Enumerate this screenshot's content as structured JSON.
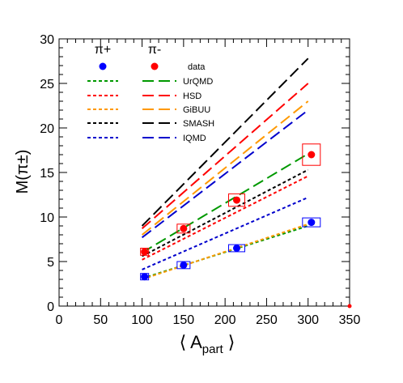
{
  "chart_data": {
    "type": "line",
    "xlabel_main": "⟨ A",
    "xlabel_sub": "part",
    "xlabel_end": " ⟩",
    "ylabel": "M(π±)",
    "xlim": [
      0,
      350
    ],
    "ylim": [
      0,
      30
    ],
    "x_ticks": [
      "0",
      "50",
      "100",
      "150",
      "200",
      "250",
      "300",
      "350"
    ],
    "y_ticks": [
      "0",
      "5",
      "10",
      "15",
      "20",
      "25",
      "30"
    ],
    "legend": {
      "column_headers": [
        "π+",
        "π-"
      ],
      "entries": [
        {
          "label": "data",
          "color": "#0000ff",
          "color2": "#ff0000",
          "style": "marker"
        },
        {
          "label": "UrQMD",
          "color": "#009900",
          "style": "line"
        },
        {
          "label": "HSD",
          "color": "#ff0000",
          "style": "line"
        },
        {
          "label": "GiBUU",
          "color": "#ff9900",
          "style": "line"
        },
        {
          "label": "SMASH",
          "color": "#000000",
          "style": "line"
        },
        {
          "label": "IQMD",
          "color": "#0000cc",
          "style": "line"
        }
      ]
    },
    "series": [
      {
        "name": "data",
        "particle": "π+",
        "color": "#0000ff",
        "kind": "data",
        "x": [
          103,
          150,
          214,
          304
        ],
        "y": [
          3.3,
          4.6,
          6.5,
          9.4
        ],
        "sys_w": [
          5,
          8,
          10,
          11
        ],
        "sys_h": [
          0.3,
          0.4,
          0.4,
          0.5
        ]
      },
      {
        "name": "data",
        "particle": "π-",
        "color": "#ff0000",
        "kind": "data",
        "x": [
          103,
          150,
          214,
          304
        ],
        "y": [
          6.1,
          8.7,
          11.9,
          17.0
        ],
        "sys_w": [
          5,
          8,
          10,
          11
        ],
        "sys_h": [
          0.4,
          0.5,
          0.7,
          1.2
        ]
      },
      {
        "name": "UrQMD",
        "particle": "π+",
        "color": "#009900",
        "kind": "short",
        "x": [
          100,
          300
        ],
        "y": [
          3.1,
          9.0
        ]
      },
      {
        "name": "HSD",
        "particle": "π+",
        "color": "#ff0000",
        "kind": "short",
        "x": [
          100,
          300
        ],
        "y": [
          5.2,
          14.6
        ]
      },
      {
        "name": "GiBUU",
        "particle": "π+",
        "color": "#ff9900",
        "kind": "short",
        "x": [
          100,
          300
        ],
        "y": [
          3.0,
          9.2
        ]
      },
      {
        "name": "SMASH",
        "particle": "π+",
        "color": "#000000",
        "kind": "short",
        "x": [
          100,
          300
        ],
        "y": [
          5.6,
          15.3
        ]
      },
      {
        "name": "IQMD",
        "particle": "π+",
        "color": "#0000cc",
        "kind": "short",
        "x": [
          100,
          300
        ],
        "y": [
          4.1,
          12.2
        ]
      },
      {
        "name": "UrQMD",
        "particle": "π-",
        "color": "#009900",
        "kind": "long",
        "x": [
          100,
          300
        ],
        "y": [
          6.0,
          17.1
        ]
      },
      {
        "name": "HSD",
        "particle": "π-",
        "color": "#ff0000",
        "kind": "long",
        "x": [
          100,
          300
        ],
        "y": [
          8.7,
          25.0
        ]
      },
      {
        "name": "GiBUU",
        "particle": "π-",
        "color": "#ff9900",
        "kind": "long",
        "x": [
          100,
          300
        ],
        "y": [
          8.0,
          23.0
        ]
      },
      {
        "name": "SMASH",
        "particle": "π-",
        "color": "#000000",
        "kind": "long",
        "x": [
          100,
          300
        ],
        "y": [
          9.0,
          27.8
        ]
      },
      {
        "name": "IQMD",
        "particle": "π-",
        "color": "#0000cc",
        "kind": "long",
        "x": [
          100,
          300
        ],
        "y": [
          7.7,
          22.0
        ]
      }
    ]
  }
}
